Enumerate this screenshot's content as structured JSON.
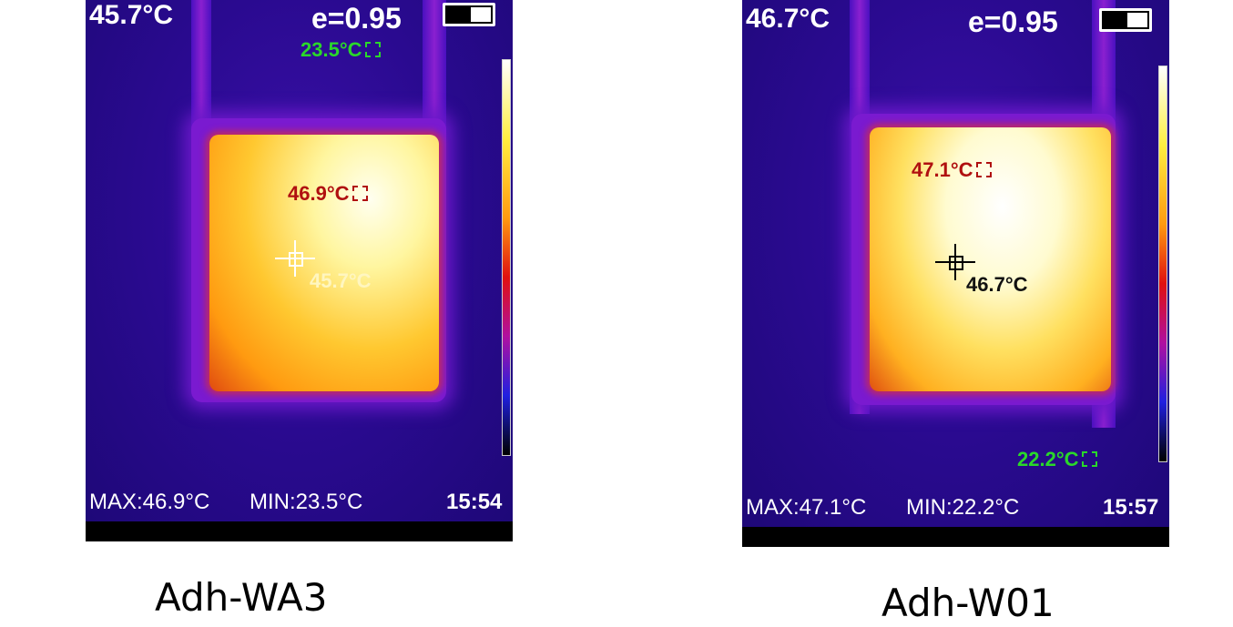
{
  "panels": [
    {
      "center_temp": "45.7°C",
      "emissivity": "e=0.95",
      "min_spot": "23.5°C",
      "max_spot": "46.9°C",
      "cross_temp": "45.7°C",
      "max": "MAX:46.9°C",
      "min": "MIN:23.5°C",
      "time": "15:54",
      "caption": "Adh-WA3"
    },
    {
      "center_temp": "46.7°C",
      "emissivity": "e=0.95",
      "min_spot": "22.2°C",
      "max_spot": "47.1°C",
      "cross_temp": "46.7°C",
      "max": "MAX:47.1°C",
      "min": "MIN:22.2°C",
      "time": "15:57",
      "caption": "Adh-W01"
    }
  ],
  "icons": {
    "battery": "battery-icon",
    "crosshair": "crosshair-icon",
    "spot": "spot-box-icon"
  },
  "colors": {
    "min_marker": "#2ad82a",
    "max_marker": "#b01010"
  }
}
